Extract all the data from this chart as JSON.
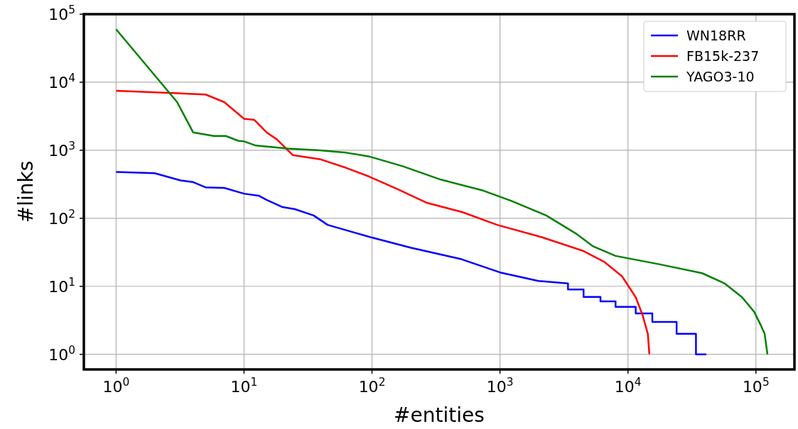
{
  "chart_data": {
    "type": "line",
    "xlabel": "#entities",
    "ylabel": "#links",
    "log": "xy",
    "grid": true,
    "legend": "top right",
    "line_style": "solid",
    "xlim": [
      0.56,
      200000
    ],
    "ylim": [
      0.6,
      100000
    ],
    "xticks": [
      {
        "value": 1,
        "label": "10$^{0}$"
      },
      {
        "value": 10,
        "label": "10$^{1}$"
      },
      {
        "value": 100,
        "label": "10$^{2}$"
      },
      {
        "value": 1000,
        "label": "10$^{3}$"
      },
      {
        "value": 10000,
        "label": "10$^{4}$"
      },
      {
        "value": 100000,
        "label": "10$^{5}$"
      }
    ],
    "yticks": [
      {
        "value": 1,
        "label": "10$^{0}$"
      },
      {
        "value": 10,
        "label": "10$^{1}$"
      },
      {
        "value": 100,
        "label": "10$^{2}$"
      },
      {
        "value": 1000,
        "label": "10$^{3}$"
      },
      {
        "value": 10000,
        "label": "10$^{4}$"
      },
      {
        "value": 100000,
        "label": "10$^{5}$"
      }
    ],
    "series": [
      {
        "name": "WN18RR",
        "color": "#0000ff",
        "x": [
          1,
          2,
          3.2,
          4,
          5,
          7,
          10,
          13,
          15,
          20,
          25,
          35,
          45,
          100,
          200,
          500,
          1000,
          2000,
          3400,
          3400,
          4500,
          4500,
          6100,
          6100,
          8000,
          8000,
          11500,
          11500,
          15500,
          15500,
          24000,
          24000,
          34000,
          34000,
          41000
        ],
        "values": [
          480,
          460,
          360,
          340,
          285,
          280,
          230,
          215,
          186,
          146,
          136,
          110,
          80,
          52,
          37,
          25,
          16,
          12,
          11,
          9,
          9,
          7,
          7,
          6,
          6,
          5,
          5,
          4,
          4,
          3,
          3,
          2,
          2,
          1,
          1
        ]
      },
      {
        "name": "FB15k-237",
        "color": "#ff0000",
        "x": [
          1,
          5,
          7,
          10,
          12,
          15,
          18,
          22,
          24,
          39,
          63,
          95,
          160,
          265,
          510,
          950,
          2100,
          4500,
          6500,
          9000,
          11500,
          13000,
          14300,
          14700
        ],
        "values": [
          7500,
          6600,
          5100,
          2900,
          2800,
          1830,
          1450,
          1000,
          850,
          740,
          550,
          410,
          265,
          170,
          123,
          80,
          53,
          33,
          23,
          14,
          6.9,
          3.8,
          2,
          1
        ]
      },
      {
        "name": "YAGO3-10",
        "color": "#008000",
        "x": [
          1,
          3,
          4,
          5.8,
          7.2,
          9,
          10,
          12.4,
          22,
          39,
          63,
          95,
          175,
          345,
          740,
          1230,
          2300,
          3900,
          5300,
          8000,
          17800,
          38000,
          57000,
          78000,
          97000,
          110000,
          117000,
          123000
        ],
        "values": [
          60000,
          5100,
          1830,
          1620,
          1620,
          1380,
          1350,
          1170,
          1060,
          1000,
          920,
          810,
          580,
          370,
          255,
          180,
          110,
          60,
          39,
          28,
          21,
          15.6,
          11,
          6.9,
          4.2,
          2.6,
          2,
          1
        ]
      }
    ]
  }
}
